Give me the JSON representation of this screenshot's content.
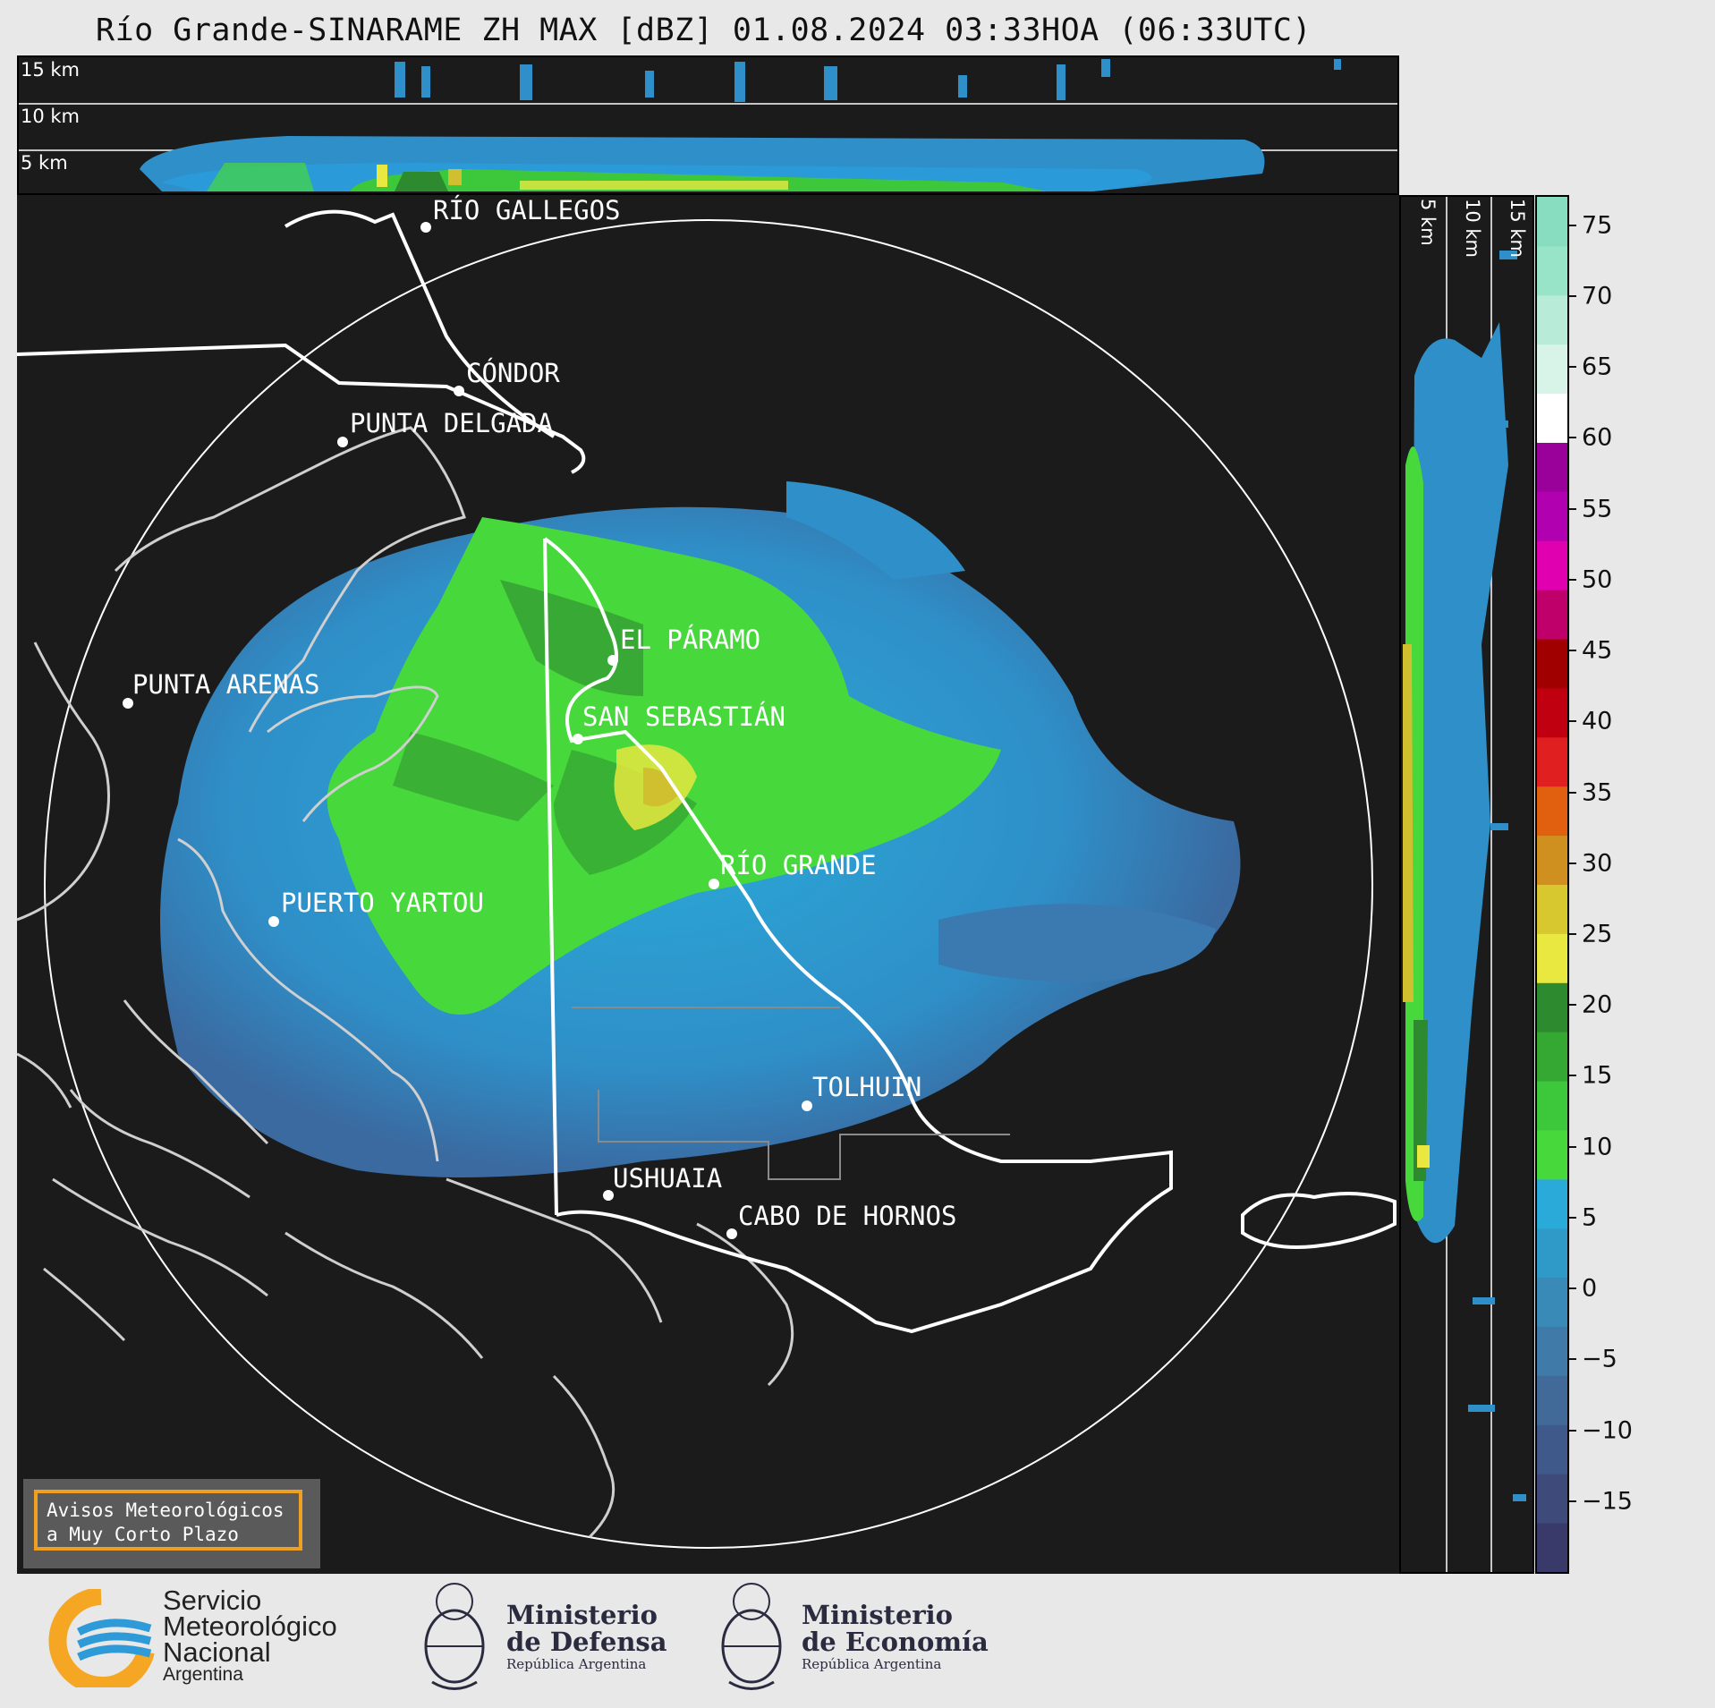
{
  "title": "Río Grande-SINARAME ZH MAX [dBZ] 01.08.2024 03:33HOA (06:33UTC)",
  "top_panel": {
    "levels": [
      "15 km",
      "10 km",
      "5 km"
    ]
  },
  "side_panel": {
    "levels": [
      "5 km",
      "10 km",
      "15 km"
    ]
  },
  "cities": [
    {
      "name": "RÍO GALLEGOS"
    },
    {
      "name": "CÓNDOR"
    },
    {
      "name": "PUNTA DELGADA"
    },
    {
      "name": "EL PÁRAMO"
    },
    {
      "name": "PUNTA ARENAS"
    },
    {
      "name": "SAN SEBASTIÁN"
    },
    {
      "name": "RÍO GRANDE"
    },
    {
      "name": "PUERTO YARTOU"
    },
    {
      "name": "TOLHUIN"
    },
    {
      "name": "USHUAIA"
    },
    {
      "name": "CABO DE HORNOS"
    }
  ],
  "colorbar": {
    "unit": "dBZ",
    "ticks": [
      "75",
      "70",
      "65",
      "60",
      "55",
      "50",
      "45",
      "40",
      "35",
      "30",
      "25",
      "20",
      "15",
      "10",
      "5",
      "0",
      "−5",
      "−10",
      "−15"
    ],
    "range": [
      -20,
      77
    ],
    "colors": [
      "#3a3a6a",
      "#3d4a7a",
      "#3f5a8a",
      "#416a98",
      "#3f7aa8",
      "#3a8ab8",
      "#2f9ac8",
      "#2aaad8",
      "#47d83c",
      "#3cc83a",
      "#34a832",
      "#2e8a2e",
      "#e8e840",
      "#d8c830",
      "#d09020",
      "#e06010",
      "#e02020",
      "#c00010",
      "#a00000",
      "#c0006a",
      "#e000b0",
      "#b000b0",
      "#9a009a",
      "#ffffff",
      "#d8f4e8",
      "#b8ecd8",
      "#98e4c8",
      "#88ddc0"
    ]
  },
  "warning_box": {
    "text": "Avisos Meteorológicos\na Muy Corto Plazo"
  },
  "logos": {
    "smn": {
      "line1": "Servicio",
      "line2": "Meteorológico",
      "line3": "Nacional",
      "line4": "Argentina"
    },
    "defensa": {
      "line1": "Ministerio",
      "line2": "de Defensa",
      "line3": "República Argentina"
    },
    "economia": {
      "line1": "Ministerio",
      "line2": "de Economía",
      "line3": "República Argentina"
    }
  }
}
